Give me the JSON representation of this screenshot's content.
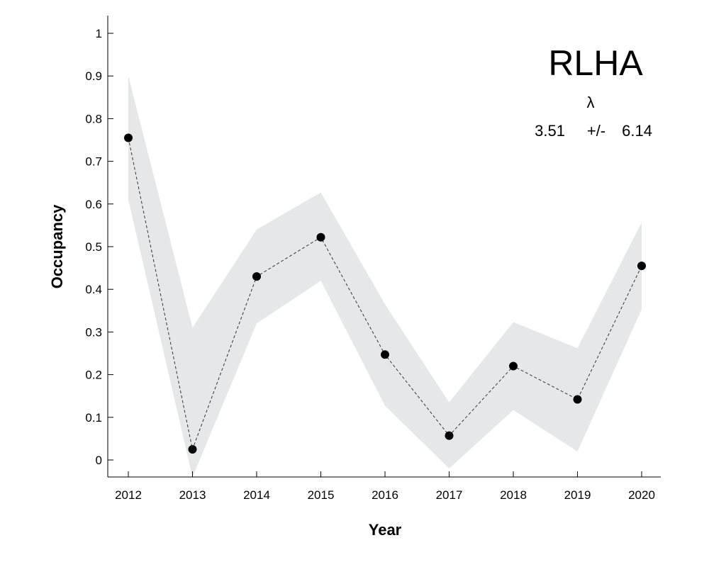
{
  "chart_data": {
    "type": "line",
    "title": "",
    "xlabel": "Year",
    "ylabel": "Occupancy",
    "x": [
      "2012",
      "2013",
      "2014",
      "2015",
      "2016",
      "2017",
      "2018",
      "2019",
      "2020"
    ],
    "series": [
      {
        "values": [
          0.755,
          0.025,
          0.43,
          0.522,
          0.247,
          0.057,
          0.22,
          0.142,
          0.455
        ],
        "lower": [
          0.61,
          -0.04,
          0.32,
          0.42,
          0.127,
          -0.02,
          0.117,
          0.02,
          0.353
        ],
        "upper": [
          0.9,
          0.31,
          0.54,
          0.627,
          0.365,
          0.135,
          0.323,
          0.262,
          0.557
        ]
      }
    ],
    "ylim": [
      -0.04,
      1.04
    ],
    "yticks": [
      "0",
      "0.1",
      "0.2",
      "0.3",
      "0.4",
      "0.5",
      "0.6",
      "0.7",
      "0.8",
      "0.9",
      "1"
    ],
    "annotation": {
      "label": "RLHA",
      "symbol": "λ",
      "estimate": "3.51",
      "pm": "+/-",
      "error": "6.14"
    },
    "colors": {
      "band": "#e6e7e8",
      "points": "#000000",
      "line": "#333333",
      "axis": "#000000"
    },
    "grid": false,
    "legend": "none"
  }
}
